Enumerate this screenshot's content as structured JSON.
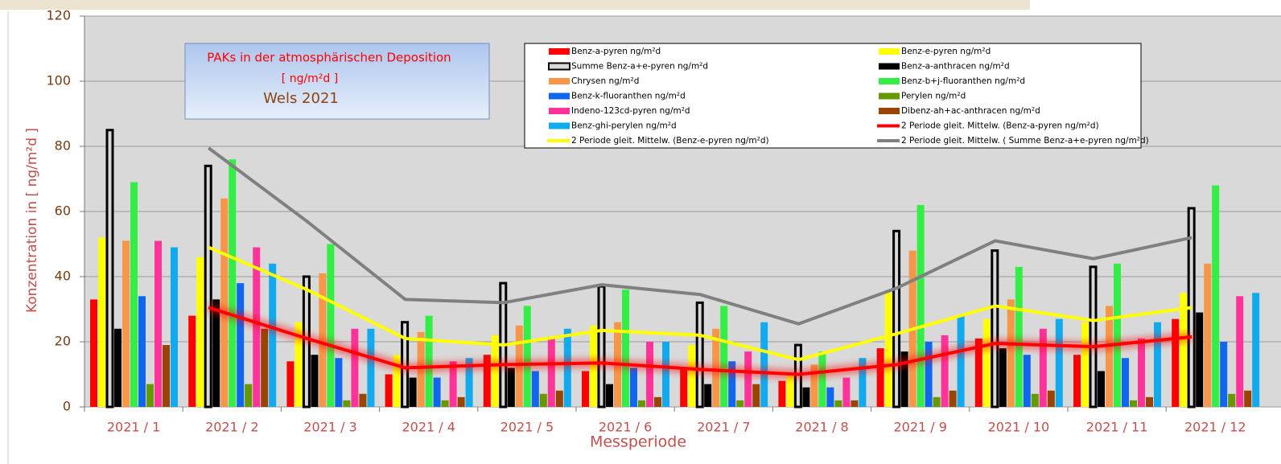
{
  "chart_data": {
    "type": "bar",
    "title_lines": [
      "PAKs in der atmosphärischen Deposition",
      "[ ng/m²d ]",
      "Wels 2021"
    ],
    "xlabel": "Messperiode",
    "ylabel": "Konzentration in [ ng/m²d ]",
    "categories": [
      "2021 / 1",
      "2021 / 2",
      "2021 / 3",
      "2021 / 4",
      "2021 / 5",
      "2021 / 6",
      "2021 / 7",
      "2021 / 8",
      "2021 / 9",
      "2021 / 10",
      "2021 / 11",
      "2021 / 12"
    ],
    "ylim": [
      0,
      120
    ],
    "yticks": [
      0,
      20,
      40,
      60,
      80,
      100,
      120
    ],
    "grid": true,
    "series": [
      {
        "name": "Benz-a-pyren ng/m²d",
        "type": "bar",
        "color": "#ff0000",
        "values": [
          33,
          28,
          14,
          10,
          16,
          11,
          12,
          8,
          18,
          21,
          16,
          27
        ]
      },
      {
        "name": "Benz-e-pyren ng/m²d",
        "type": "bar",
        "color": "#ffff00",
        "values": [
          52,
          46,
          26,
          16,
          22,
          25,
          19,
          10,
          35,
          27,
          26,
          35
        ]
      },
      {
        "name": "Summe Benz-a+e-pyren ng/m²d",
        "type": "bar",
        "color": "#d8d8d8",
        "outline": "#000000",
        "values": [
          85,
          74,
          40,
          26,
          38,
          37,
          32,
          19,
          54,
          48,
          43,
          61
        ]
      },
      {
        "name": "Benz-a-anthracen ng/m²d",
        "type": "bar",
        "color": "#000000",
        "values": [
          24,
          33,
          16,
          9,
          12,
          7,
          7,
          6,
          17,
          18,
          11,
          29
        ]
      },
      {
        "name": "Chrysen ng/m²d",
        "type": "bar",
        "color": "#f79646",
        "values": [
          51,
          64,
          41,
          23,
          25,
          26,
          24,
          13,
          48,
          33,
          31,
          44
        ]
      },
      {
        "name": "Benz-b+j-fluoranthen ng/m²d",
        "type": "bar",
        "color": "#33ee44",
        "values": [
          69,
          76,
          50,
          28,
          31,
          36,
          31,
          17,
          62,
          43,
          44,
          68
        ]
      },
      {
        "name": "Benz-k-fluoranthen ng/m²d",
        "type": "bar",
        "color": "#1166ee",
        "values": [
          34,
          38,
          15,
          9,
          11,
          12,
          14,
          6,
          20,
          16,
          15,
          20
        ]
      },
      {
        "name": "Perylen ng/m²d",
        "type": "bar",
        "color": "#669900",
        "values": [
          7,
          7,
          2,
          2,
          4,
          2,
          2,
          2,
          3,
          4,
          2,
          4
        ]
      },
      {
        "name": "Indeno-123cd-pyren ng/m²d",
        "type": "bar",
        "color": "#ff3399",
        "values": [
          51,
          49,
          24,
          14,
          21,
          20,
          17,
          9,
          22,
          24,
          21,
          34
        ]
      },
      {
        "name": "Dibenz-ah+ac-anthracen ng/m²d",
        "type": "bar",
        "color": "#994400",
        "values": [
          19,
          24,
          4,
          3,
          5,
          3,
          7,
          2,
          5,
          5,
          3,
          5
        ]
      },
      {
        "name": "Benz-ghi-perylen ng/m²d",
        "type": "bar",
        "color": "#11aaee",
        "values": [
          49,
          44,
          24,
          15,
          24,
          20,
          26,
          15,
          28,
          27,
          26,
          35
        ]
      },
      {
        "name": "2 Periode gleit. Mittelw. (Benz-a-pyren ng/m²d)",
        "type": "line",
        "color": "#ff0000",
        "values": [
          null,
          30.5,
          21,
          12,
          13,
          13.5,
          11.5,
          10,
          13,
          19.5,
          18.5,
          21.5
        ]
      },
      {
        "name": "2 Periode gleit. Mittelw. (Benz-e-pyren ng/m²d)",
        "type": "line",
        "color": "#ffff00",
        "values": [
          null,
          49,
          36,
          21,
          19,
          23.5,
          22,
          14.5,
          22.5,
          31,
          26.5,
          30.5
        ]
      },
      {
        "name": "2 Periode gleit. Mittelw. ( Summe Benz-a+e-pyren ng/m²d)",
        "type": "line",
        "color": "#808080",
        "values": [
          null,
          79.5,
          57,
          33,
          32,
          37.5,
          34.5,
          25.5,
          36.5,
          51,
          45.5,
          52
        ]
      }
    ]
  }
}
